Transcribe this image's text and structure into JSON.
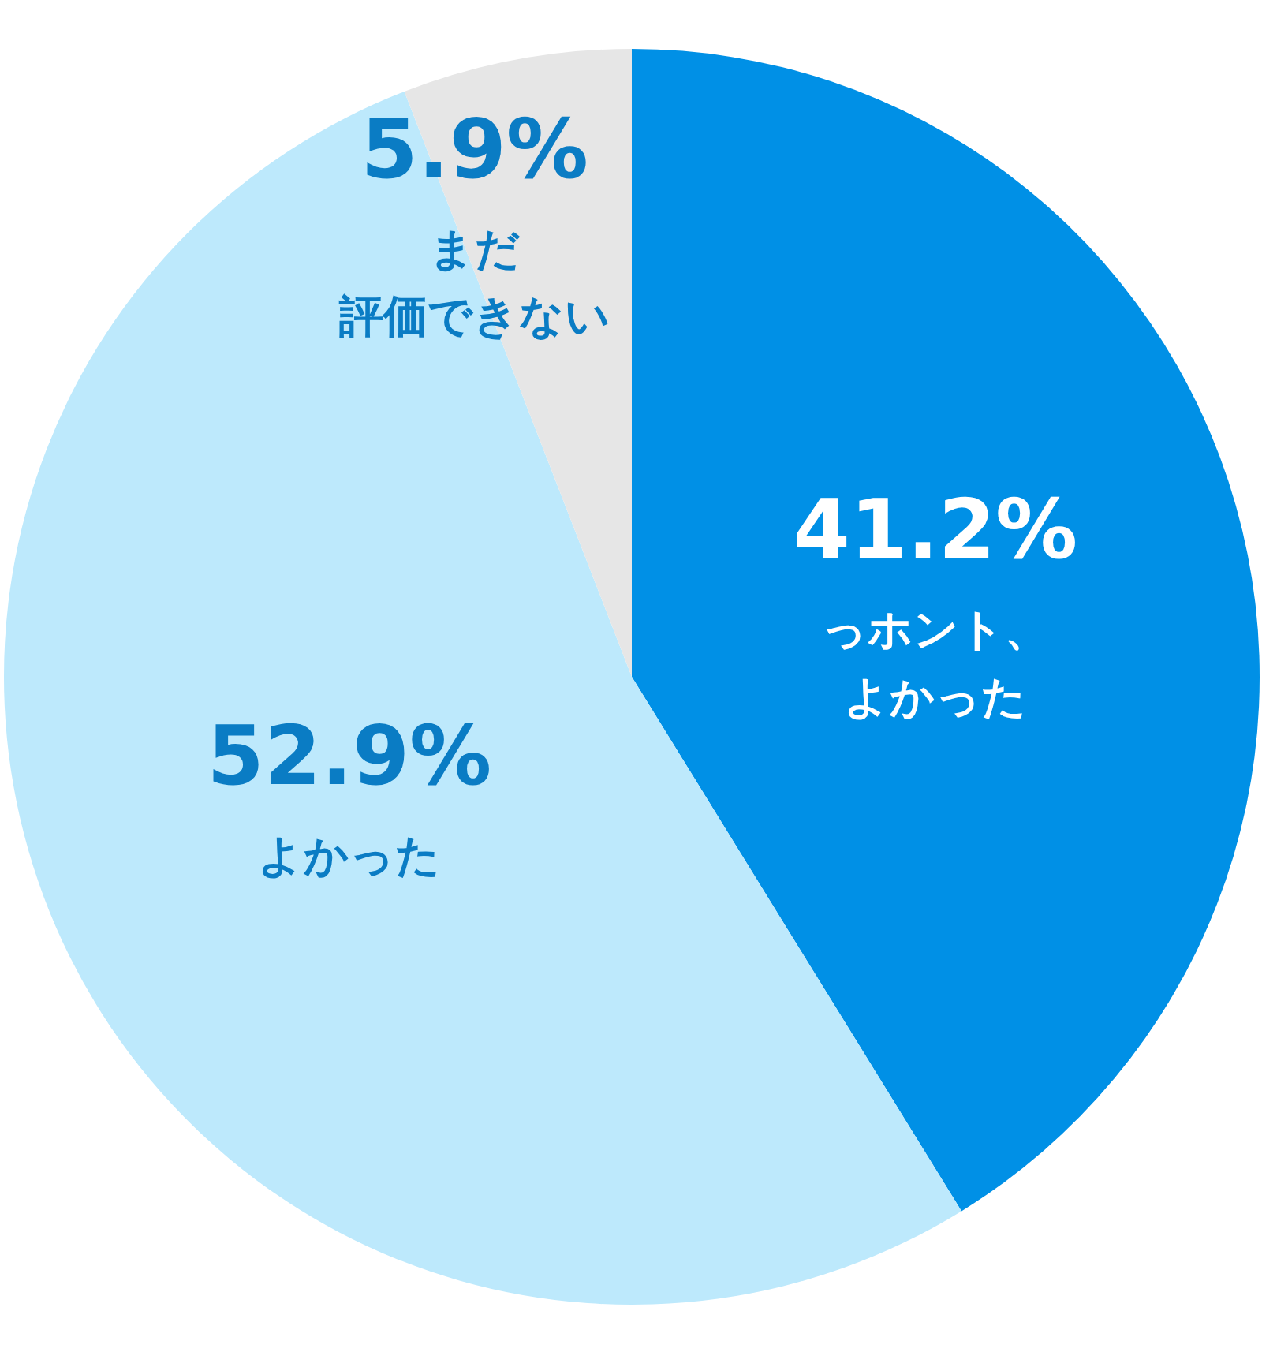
{
  "chart_data": {
    "type": "pie",
    "categories": [
      "っホント、よかった",
      "よかった",
      "まだ評価できない"
    ],
    "values": [
      41.2,
      52.9,
      5.9
    ],
    "colors": [
      "#0090e6",
      "#bde9fc",
      "#e6e6e6"
    ],
    "value_labels": [
      "41.2%",
      "52.9%",
      "5.9%"
    ]
  }
}
